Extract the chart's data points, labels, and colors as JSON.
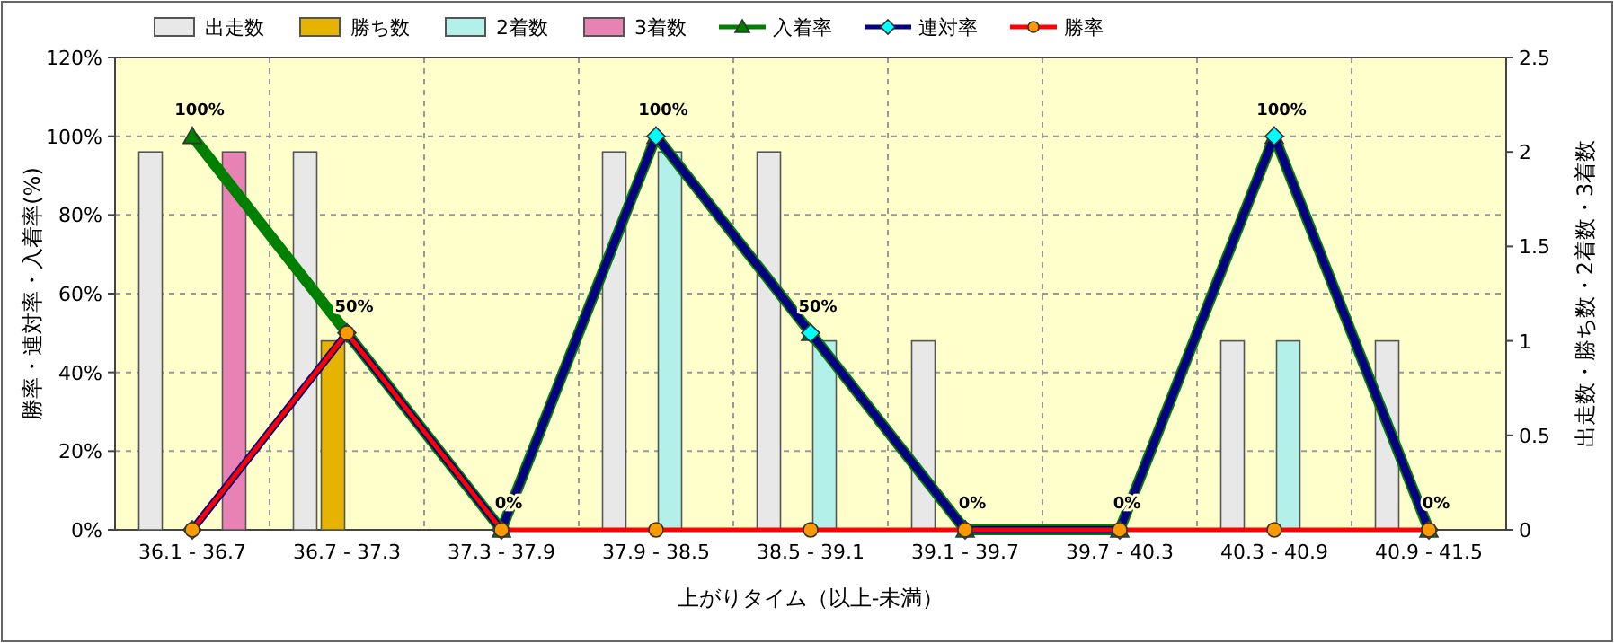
{
  "chart_data": {
    "type": "bar",
    "xlabel": "上がりタイム（以上-未満）",
    "ylabel": "勝率・連対率・入着率(%)",
    "y2label": "出走数・勝ち数・2着数・3着数",
    "categories": [
      "36.1 - 36.7",
      "36.7 - 37.3",
      "37.3 - 37.9",
      "37.9 - 38.5",
      "38.5 - 39.1",
      "39.1 - 39.7",
      "39.7 - 40.3",
      "40.3 - 40.9",
      "40.9 - 41.5"
    ],
    "series": [
      {
        "name": "出走数",
        "axis": "y2",
        "color": "#e8e8e8",
        "values": [
          2,
          2,
          0,
          2,
          2,
          1,
          0,
          1,
          1
        ]
      },
      {
        "name": "勝ち数",
        "axis": "y2",
        "color": "#e6b400",
        "values": [
          0,
          1,
          0,
          0,
          0,
          0,
          0,
          0,
          0
        ]
      },
      {
        "name": "2着数",
        "axis": "y2",
        "color": "#b4f0ea",
        "values": [
          0,
          0,
          0,
          2,
          1,
          0,
          0,
          1,
          0
        ]
      },
      {
        "name": "3着数",
        "axis": "y2",
        "color": "#e882b4",
        "values": [
          2,
          0,
          0,
          0,
          0,
          0,
          0,
          0,
          0
        ]
      },
      {
        "name": "入着率",
        "type": "line",
        "axis": "y",
        "color": "#008000",
        "marker": "triangle",
        "values": [
          100,
          50,
          0,
          100,
          50,
          0,
          0,
          100,
          0
        ],
        "value_labels": [
          "100%",
          "50%",
          "0%",
          "100%",
          "50%",
          "0%",
          "0%",
          "100%",
          "0%"
        ]
      },
      {
        "name": "連対率",
        "type": "line",
        "axis": "y",
        "color": "#000080",
        "marker": "diamond",
        "values": [
          0,
          50,
          0,
          100,
          50,
          0,
          0,
          100,
          0
        ]
      },
      {
        "name": "勝率",
        "type": "line",
        "axis": "y",
        "color": "#ff0000",
        "marker": "circle",
        "values": [
          0,
          50,
          0,
          0,
          0,
          0,
          0,
          0,
          0
        ]
      }
    ],
    "ylim": [
      0,
      120
    ],
    "yticks": [
      {
        "value": 0,
        "label": "0%"
      },
      {
        "value": 20,
        "label": "20%"
      },
      {
        "value": 40,
        "label": "40%"
      },
      {
        "value": 60,
        "label": "60%"
      },
      {
        "value": 80,
        "label": "80%"
      },
      {
        "value": 100,
        "label": "100%"
      },
      {
        "value": 120,
        "label": "120%"
      }
    ],
    "y2lim": [
      0,
      2.5
    ],
    "y2ticks": [
      0,
      0.5,
      1,
      1.5,
      2,
      2.5
    ],
    "grid": true,
    "legend": "top left"
  }
}
